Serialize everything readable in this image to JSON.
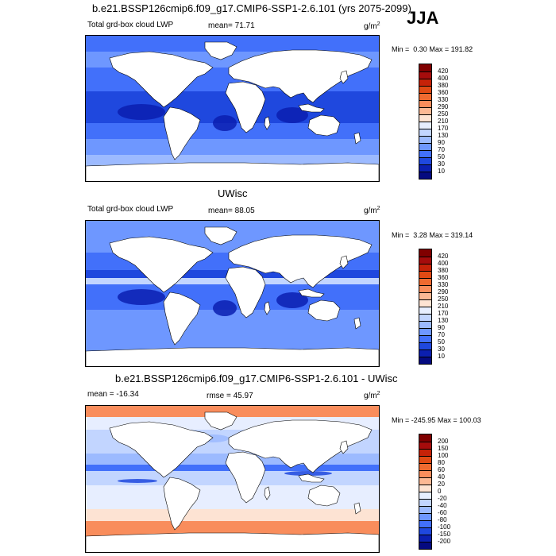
{
  "season": "JJA",
  "panels": [
    {
      "id": "model",
      "header": "b.e21.BSSP126cmip6.f09_g17.CMIP6-SSP1-2.6.101 (yrs 2075-2099)",
      "left_label": "Total grd-box cloud LWP",
      "stat_label": "mean=",
      "stat_value": "71.71",
      "units": "g/m",
      "units_exp": "2",
      "min_label": "Min =",
      "min_value": "0.30",
      "max_label": "Max =",
      "max_value": "191.82",
      "colorbar_ticks": [
        "420",
        "400",
        "380",
        "360",
        "330",
        "290",
        "250",
        "210",
        "170",
        "130",
        "90",
        "70",
        "50",
        "30",
        "10"
      ]
    },
    {
      "id": "obs",
      "header": "UWisc",
      "left_label": "Total grd-box cloud LWP",
      "stat_label": "mean=",
      "stat_value": "88.05",
      "units": "g/m",
      "units_exp": "2",
      "min_label": "Min =",
      "min_value": "3.28",
      "max_label": "Max =",
      "max_value": "319.14",
      "colorbar_ticks": [
        "420",
        "400",
        "380",
        "360",
        "330",
        "290",
        "250",
        "210",
        "170",
        "130",
        "90",
        "70",
        "50",
        "30",
        "10"
      ]
    },
    {
      "id": "diff",
      "header": "b.e21.BSSP126cmip6.f09_g17.CMIP6-SSP1-2.6.101 - UWisc",
      "left_label": "mean = -16.34",
      "stat_label": "rmse =",
      "stat_value": "45.97",
      "units": "g/m",
      "units_exp": "2",
      "min_label": "Min =",
      "min_value": "-245.95",
      "max_label": "Max =",
      "max_value": "100.03",
      "colorbar_ticks": [
        "200",
        "150",
        "100",
        "80",
        "60",
        "40",
        "20",
        "0",
        "-20",
        "-40",
        "-60",
        "-80",
        "-100",
        "-150",
        "-200"
      ]
    }
  ],
  "colors": {
    "seq_scale": [
      "#800000",
      "#a60c0c",
      "#c62208",
      "#e04a14",
      "#ef6a30",
      "#f98d5c",
      "#fcb894",
      "#fde3d3",
      "#e7eeff",
      "#c2d5ff",
      "#9cbaff",
      "#6e97ff",
      "#4270fa",
      "#1f48de",
      "#0b1fb0",
      "#050a80"
    ],
    "div_scale": [
      "#800000",
      "#a60c0c",
      "#c62208",
      "#e04a14",
      "#ef6a30",
      "#f98d5c",
      "#fcb894",
      "#fde3d3",
      "#e7eeff",
      "#c2d5ff",
      "#9cbaff",
      "#6e97ff",
      "#4270fa",
      "#1f48de",
      "#0b1fb0",
      "#050a80"
    ],
    "land": "#ffffff"
  }
}
